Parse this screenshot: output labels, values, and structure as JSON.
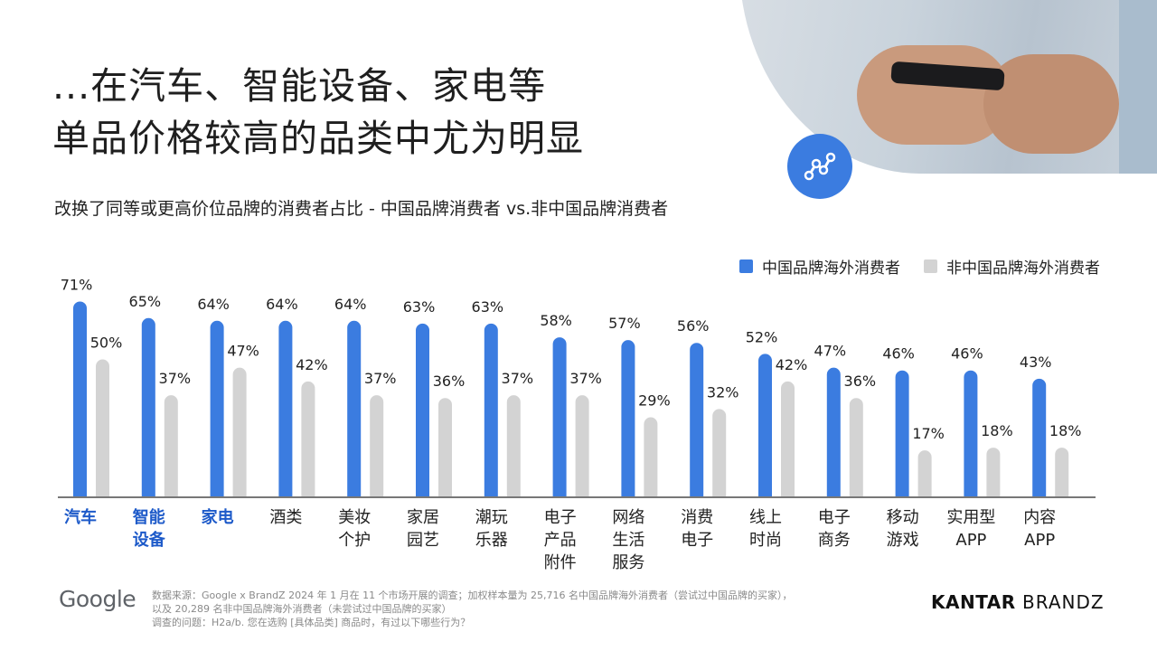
{
  "title": {
    "line1": "...在汽车、智能设备、家电等",
    "line2": "单品价格较高的品类中尤为明显"
  },
  "subtitle": "改换了同等或更高价位品牌的消费者占比 - 中国品牌消费者 vs.非中国品牌消费者",
  "colors": {
    "chinese": "#3b7ce0",
    "non_chinese": "#d3d3d3",
    "highlight": "#1d5ac9",
    "axis": "#777777"
  },
  "legend": {
    "chinese": "中国品牌海外消费者",
    "non_chinese": "非中国品牌海外消费者"
  },
  "chart_data": {
    "type": "bar",
    "categories": [
      "汽车",
      "智能设备",
      "家电",
      "酒类",
      "美妆个护",
      "家居园艺",
      "潮玩乐器",
      "电子产品附件",
      "网络生活服务",
      "消费电子",
      "线上时尚",
      "电子商务",
      "移动游戏",
      "实用型APP",
      "内容APP"
    ],
    "category_lines": [
      [
        "汽车"
      ],
      [
        "智能",
        "设备"
      ],
      [
        "家电"
      ],
      [
        "酒类"
      ],
      [
        "美妆",
        "个护"
      ],
      [
        "家居",
        "园艺"
      ],
      [
        "潮玩",
        "乐器"
      ],
      [
        "电子",
        "产品",
        "附件"
      ],
      [
        "网络",
        "生活",
        "服务"
      ],
      [
        "消费",
        "电子"
      ],
      [
        "线上",
        "时尚"
      ],
      [
        "电子",
        "商务"
      ],
      [
        "移动",
        "游戏"
      ],
      [
        "实用型",
        "APP"
      ],
      [
        "内容",
        "APP"
      ]
    ],
    "highlighted": [
      "汽车",
      "智能设备",
      "家电"
    ],
    "series": [
      {
        "name": "中国品牌海外消费者",
        "values": [
          71,
          65,
          64,
          64,
          64,
          63,
          63,
          58,
          57,
          56,
          52,
          47,
          46,
          46,
          43
        ]
      },
      {
        "name": "非中国品牌海外消费者",
        "values": [
          50,
          37,
          47,
          42,
          37,
          36,
          37,
          37,
          29,
          32,
          42,
          36,
          17,
          18,
          18
        ]
      }
    ],
    "value_suffix": "%",
    "ylim": [
      0,
      80
    ],
    "grid": false,
    "legend_position": "top-right"
  },
  "footer": {
    "google_logo": "Google",
    "source_lines": [
      "数据来源：Google x BrandZ 2024 年 1 月在 11 个市场开展的调查；加权样本量为 25,716 名中国品牌海外消费者（尝试过中国品牌的买家），",
      "以及 20,289 名非中国品牌海外消费者（未尝试过中国品牌的买家）",
      "调查的问题：H2a/b. 您在选购 [具体品类] 商品时，有过以下哪些行为？"
    ],
    "kantar_bold": "KANTAR",
    "kantar_light": "BRANDZ"
  }
}
